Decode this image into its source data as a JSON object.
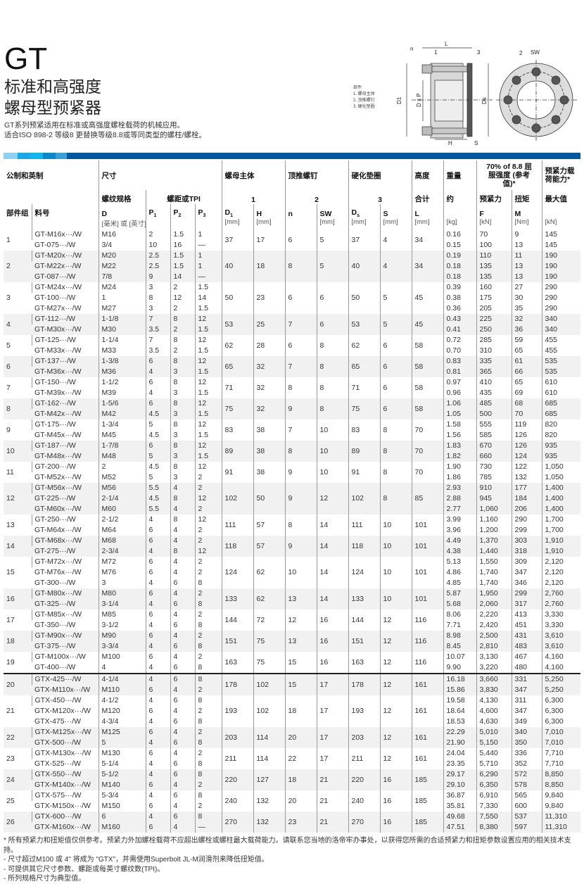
{
  "header": {
    "title": "GT",
    "subtitle_1": "标准和高强度",
    "subtitle_2": "螺母型预紧器",
    "desc_1": "GT系列预紧适用在标准或高强度螺栓载荷的机械应用。",
    "desc_2": "适合ISO 898-2 等级8 更替换等级8.8或等同类型的螺柱/螺栓。"
  },
  "diagram": {
    "legend_title": "部件:",
    "legend": [
      "1. 螺母主体",
      "2. 顶推螺钉",
      "3. 硬化垫圈"
    ],
    "labels": {
      "n": "n",
      "one": "1",
      "three": "3",
      "L": "L",
      "two": "2",
      "SW": "SW",
      "D1": "D1",
      "DxP": "D x P",
      "Ds": "Ds",
      "H": "H",
      "S": "S"
    }
  },
  "colors": {
    "bar": [
      "#8fd0f0",
      "#1aa7e8",
      "#11b5ee",
      "#0b88c9",
      "#3a9fd6",
      "#0057a0"
    ],
    "accent": "#0057a0"
  },
  "table_header": {
    "metric_imperial": "公制和英制",
    "size": "尺寸",
    "nut_body": "螺母主体",
    "jackbolt": "顶推螺钉",
    "washer": "硬化垫圈",
    "height": "高度",
    "weight": "重量",
    "strength": "70% of 8.8 屈服强度 (参考值)*",
    "capacity": "预紧力载荷能力*",
    "thread": "螺纹规格",
    "pitch": "螺距或TPI",
    "n1": "1",
    "n2": "2",
    "n3": "3",
    "total": "合计",
    "approx": "约",
    "preload": "预紧力",
    "torque": "扭矩",
    "max": "最大值",
    "group": "部件组",
    "part": "料号",
    "D": "D",
    "P1": "P",
    "P2": "P",
    "P3": "P",
    "D1": "D",
    "H": "H",
    "n": "n",
    "SW": "SW",
    "Ds": "D",
    "S": "S",
    "L": "L",
    "F": "F",
    "M": "M",
    "u_D": "[毫米] 或 [英寸]",
    "u_mm": "[mm]",
    "u_kg": "[kg]",
    "u_kN": "[kN]",
    "u_Nm": "[Nm]"
  },
  "groups": [
    {
      "g": "1",
      "dims": [
        "37",
        "17",
        "6",
        "5",
        "37",
        "4",
        "34"
      ],
      "rows": [
        [
          "GT-M16x···/W",
          "M16",
          "2",
          "1.5",
          "1",
          "0.16",
          "70",
          "9",
          "145"
        ],
        [
          "GT-075···/W",
          "3/4",
          "10",
          "16",
          "—",
          "0.15",
          "100",
          "13",
          "145"
        ]
      ]
    },
    {
      "g": "2",
      "dims": [
        "40",
        "18",
        "8",
        "5",
        "40",
        "4",
        "34"
      ],
      "rows": [
        [
          "GT-M20x···/W",
          "M20",
          "2.5",
          "1.5",
          "1",
          "0.19",
          "110",
          "11",
          "190"
        ],
        [
          "GT-M22x···/W",
          "M22",
          "2.5",
          "1.5",
          "1",
          "0.18",
          "135",
          "13",
          "190"
        ],
        [
          "GT-087···/W",
          "7/8",
          "9",
          "14",
          "—",
          "0.18",
          "135",
          "13",
          "190"
        ]
      ]
    },
    {
      "g": "3",
      "dims": [
        "50",
        "23",
        "6",
        "6",
        "50",
        "5",
        "45"
      ],
      "rows": [
        [
          "GT-M24x···/W",
          "M24",
          "3",
          "2",
          "1.5",
          "0.39",
          "160",
          "27",
          "290"
        ],
        [
          "GT-100···/W",
          "1",
          "8",
          "12",
          "14",
          "0.38",
          "175",
          "30",
          "290"
        ],
        [
          "GT-M27x···/W",
          "M27",
          "3",
          "2",
          "1.5",
          "0.36",
          "205",
          "35",
          "290"
        ]
      ]
    },
    {
      "g": "4",
      "dims": [
        "53",
        "25",
        "7",
        "6",
        "53",
        "5",
        "45"
      ],
      "rows": [
        [
          "GT-112···/W",
          "1-1/8",
          "7",
          "8",
          "12",
          "0.43",
          "225",
          "32",
          "340"
        ],
        [
          "GT-M30x···/W",
          "M30",
          "3.5",
          "2",
          "1.5",
          "0.41",
          "250",
          "36",
          "340"
        ]
      ]
    },
    {
      "g": "5",
      "dims": [
        "62",
        "28",
        "6",
        "8",
        "62",
        "6",
        "58"
      ],
      "rows": [
        [
          "GT-125···/W",
          "1-1/4",
          "7",
          "8",
          "12",
          "0.72",
          "285",
          "59",
          "455"
        ],
        [
          "GT-M33x···/W",
          "M33",
          "3.5",
          "2",
          "1.5",
          "0.70",
          "310",
          "65",
          "455"
        ]
      ]
    },
    {
      "g": "6",
      "dims": [
        "65",
        "32",
        "7",
        "8",
        "65",
        "6",
        "58"
      ],
      "rows": [
        [
          "GT-137···/W",
          "1-3/8",
          "6",
          "8",
          "12",
          "0.83",
          "335",
          "61",
          "535"
        ],
        [
          "GT-M36x···/W",
          "M36",
          "4",
          "3",
          "1.5",
          "0.81",
          "365",
          "66",
          "535"
        ]
      ]
    },
    {
      "g": "7",
      "dims": [
        "71",
        "32",
        "8",
        "8",
        "71",
        "6",
        "58"
      ],
      "rows": [
        [
          "GT-150···/W",
          "1-1/2",
          "6",
          "8",
          "12",
          "0.97",
          "410",
          "65",
          "610"
        ],
        [
          "GT-M39x···/W",
          "M39",
          "4",
          "3",
          "1.5",
          "0.96",
          "435",
          "69",
          "610"
        ]
      ]
    },
    {
      "g": "8",
      "dims": [
        "75",
        "32",
        "9",
        "8",
        "75",
        "6",
        "58"
      ],
      "rows": [
        [
          "GT-162···/W",
          "1-5/6",
          "6",
          "8",
          "12",
          "1.06",
          "485",
          "68",
          "685"
        ],
        [
          "GT-M42x···/W",
          "M42",
          "4.5",
          "3",
          "1.5",
          "1.05",
          "500",
          "70",
          "685"
        ]
      ]
    },
    {
      "g": "9",
      "dims": [
        "83",
        "38",
        "7",
        "10",
        "83",
        "8",
        "70"
      ],
      "rows": [
        [
          "GT-175···/W",
          "1-3/4",
          "5",
          "8",
          "12",
          "1.58",
          "555",
          "119",
          "820"
        ],
        [
          "GT-M45x···/W",
          "M45",
          "4.5",
          "3",
          "1.5",
          "1.56",
          "585",
          "126",
          "820"
        ]
      ]
    },
    {
      "g": "10",
      "dims": [
        "89",
        "38",
        "8",
        "10",
        "89",
        "8",
        "70"
      ],
      "rows": [
        [
          "GT-187···/W",
          "1-7/8",
          "6",
          "8",
          "12",
          "1.83",
          "670",
          "126",
          "935"
        ],
        [
          "GT-M48x···/W",
          "M48",
          "5",
          "3",
          "1.5",
          "1.82",
          "660",
          "124",
          "935"
        ]
      ]
    },
    {
      "g": "11",
      "dims": [
        "91",
        "38",
        "9",
        "10",
        "91",
        "8",
        "70"
      ],
      "rows": [
        [
          "GT-200···/W",
          "2",
          "4.5",
          "8",
          "12",
          "1.90",
          "730",
          "122",
          "1,050"
        ],
        [
          "GT-M52x···/W",
          "M52",
          "5",
          "3",
          "2",
          "1.86",
          "785",
          "132",
          "1,050"
        ]
      ]
    },
    {
      "g": "12",
      "dims": [
        "102",
        "50",
        "9",
        "12",
        "102",
        "8",
        "85"
      ],
      "rows": [
        [
          "GT-M56x···/W",
          "M56",
          "5.5",
          "4",
          "2",
          "2.93",
          "910",
          "177",
          "1,400"
        ],
        [
          "GT-225···/W",
          "2-1/4",
          "4.5",
          "8",
          "12",
          "2.88",
          "945",
          "184",
          "1,400"
        ],
        [
          "GT-M60x···/W",
          "M60",
          "5.5",
          "4",
          "2",
          "2.77",
          "1,060",
          "206",
          "1,400"
        ]
      ]
    },
    {
      "g": "13",
      "dims": [
        "111",
        "57",
        "8",
        "14",
        "111",
        "10",
        "101"
      ],
      "rows": [
        [
          "GT-250···/W",
          "2-1/2",
          "4",
          "8",
          "12",
          "3.99",
          "1,160",
          "290",
          "1,700"
        ],
        [
          "GT-M64x···/W",
          "M64",
          "6",
          "4",
          "2",
          "3.96",
          "1,200",
          "299",
          "1,700"
        ]
      ]
    },
    {
      "g": "14",
      "dims": [
        "118",
        "57",
        "9",
        "14",
        "118",
        "10",
        "101"
      ],
      "rows": [
        [
          "GT-M68x···/W",
          "M68",
          "6",
          "4",
          "2",
          "4.49",
          "1,370",
          "303",
          "1,910"
        ],
        [
          "GT-275···/W",
          "2-3/4",
          "4",
          "8",
          "12",
          "4.38",
          "1,440",
          "318",
          "1,910"
        ]
      ]
    },
    {
      "g": "15",
      "dims": [
        "124",
        "62",
        "10",
        "14",
        "124",
        "10",
        "101"
      ],
      "rows": [
        [
          "GT-M72x···/W",
          "M72",
          "6",
          "4",
          "2",
          "5.13",
          "1,550",
          "309",
          "2,120"
        ],
        [
          "GT-M76x···/W",
          "M76",
          "6",
          "4",
          "2",
          "4.86",
          "1,740",
          "347",
          "2,120"
        ],
        [
          "GT-300···/W",
          "3",
          "4",
          "6",
          "8",
          "4.85",
          "1,740",
          "346",
          "2,120"
        ]
      ]
    },
    {
      "g": "16",
      "dims": [
        "133",
        "62",
        "13",
        "14",
        "133",
        "10",
        "101"
      ],
      "rows": [
        [
          "GT-M80x···/W",
          "M80",
          "6",
          "4",
          "2",
          "5.87",
          "1,950",
          "299",
          "2,760"
        ],
        [
          "GT-325···/W",
          "3-1/4",
          "4",
          "6",
          "8",
          "5.68",
          "2,060",
          "317",
          "2,760"
        ]
      ]
    },
    {
      "g": "17",
      "dims": [
        "144",
        "72",
        "12",
        "16",
        "144",
        "12",
        "116"
      ],
      "rows": [
        [
          "GT-M85x···/W",
          "M85",
          "6",
          "4",
          "2",
          "8.06",
          "2,220",
          "413",
          "3,330"
        ],
        [
          "GT-350···/W",
          "3-1/2",
          "4",
          "6",
          "8",
          "7.71",
          "2,420",
          "451",
          "3,330"
        ]
      ]
    },
    {
      "g": "18",
      "dims": [
        "151",
        "75",
        "13",
        "16",
        "151",
        "12",
        "116"
      ],
      "rows": [
        [
          "GT-M90x···/W",
          "M90",
          "6",
          "4",
          "2",
          "8.98",
          "2,500",
          "431",
          "3,610"
        ],
        [
          "GT-375···/W",
          "3-3/4",
          "4",
          "6",
          "8",
          "8.45",
          "2,810",
          "483",
          "3,610"
        ]
      ]
    },
    {
      "g": "19",
      "dims": [
        "163",
        "75",
        "15",
        "16",
        "163",
        "12",
        "116"
      ],
      "rows": [
        [
          "GT-M100x···/W",
          "M100",
          "6",
          "4",
          "2",
          "10.07",
          "3,130",
          "467",
          "4,160"
        ],
        [
          "GT-400···/W",
          "4",
          "4",
          "6",
          "8",
          "9.90",
          "3,220",
          "480",
          "4,160"
        ]
      ]
    },
    {
      "g": "20",
      "dims": [
        "178",
        "102",
        "15",
        "17",
        "178",
        "12",
        "161"
      ],
      "rows": [
        [
          "GTX-425···/W",
          "4-1/4",
          "4",
          "6",
          "8",
          "16.18",
          "3,660",
          "331",
          "5,250"
        ],
        [
          "GTX-M110x···/W",
          "M110",
          "6",
          "4",
          "2",
          "15.86",
          "3,830",
          "347",
          "5,250"
        ]
      ]
    },
    {
      "g": "21",
      "dims": [
        "193",
        "102",
        "18",
        "17",
        "193",
        "12",
        "161"
      ],
      "rows": [
        [
          "GTX-450···/W",
          "4-1/2",
          "4",
          "6",
          "8",
          "19.58",
          "4,130",
          "311",
          "6,300"
        ],
        [
          "GTX-M120x···/W",
          "M120",
          "6",
          "4",
          "2",
          "18.64",
          "4,600",
          "347",
          "6,300"
        ],
        [
          "GTX-475···/W",
          "4-3/4",
          "4",
          "6",
          "8",
          "18.53",
          "4,630",
          "349",
          "6,300"
        ]
      ]
    },
    {
      "g": "22",
      "dims": [
        "203",
        "114",
        "20",
        "17",
        "203",
        "12",
        "161"
      ],
      "rows": [
        [
          "GTX-M125x···/W",
          "M125",
          "6",
          "4",
          "2",
          "22.29",
          "5,010",
          "340",
          "7,010"
        ],
        [
          "GTX-500···/W",
          "5",
          "4",
          "6",
          "8",
          "21.90",
          "5,150",
          "350",
          "7,010"
        ]
      ]
    },
    {
      "g": "23",
      "dims": [
        "211",
        "114",
        "22",
        "17",
        "211",
        "12",
        "161"
      ],
      "rows": [
        [
          "GTX-M130x···/W",
          "M130",
          "6",
          "4",
          "2",
          "24.04",
          "5,440",
          "336",
          "7,710"
        ],
        [
          "GTX-525···/W",
          "5-1/4",
          "4",
          "6",
          "8",
          "23.35",
          "5,710",
          "352",
          "7,710"
        ]
      ]
    },
    {
      "g": "24",
      "dims": [
        "220",
        "127",
        "18",
        "21",
        "220",
        "16",
        "185"
      ],
      "rows": [
        [
          "GTX-550···/W",
          "5-1/2",
          "4",
          "6",
          "8",
          "29.17",
          "6,290",
          "572",
          "8,850"
        ],
        [
          "GTX-M140x···/W",
          "M140",
          "6",
          "4",
          "2",
          "29.10",
          "6,350",
          "578",
          "8,850"
        ]
      ]
    },
    {
      "g": "25",
      "dims": [
        "240",
        "132",
        "20",
        "21",
        "240",
        "16",
        "185"
      ],
      "rows": [
        [
          "GTX-575···/W",
          "5-3/4",
          "4",
          "6",
          "8",
          "36.87",
          "6,910",
          "565",
          "9,840"
        ],
        [
          "GTX-M150x···/W",
          "M150",
          "6",
          "4",
          "2",
          "35.81",
          "7,330",
          "600",
          "9,840"
        ]
      ]
    },
    {
      "g": "26",
      "dims": [
        "270",
        "132",
        "23",
        "21",
        "270",
        "16",
        "185"
      ],
      "rows": [
        [
          "GTX-600···/W",
          "6",
          "4",
          "6",
          "8",
          "49.68",
          "7,550",
          "537",
          "11,310"
        ],
        [
          "GTX-M160x···/W",
          "M160",
          "6",
          "4",
          "—",
          "47.51",
          "8,380",
          "597",
          "11,310"
        ]
      ]
    }
  ],
  "notes": [
    "* 所有预紧力和扭矩值仅供参考。预紧力外加螺栓载荷不应超出螺栓或螺柱最大载荷能力。请联系您当地的洛帝牢办事处，以获得您所需的合适预紧力和扭矩参数设置应用的相关技术支持。",
    "- 尺寸超过M100 或 4\" 将成为 \"GTX\"，并需使用Superbolt JL-M润滑剂来降低扭矩值。",
    "- 可提供其它尺寸参数、螺距或每英寸螺纹数(TPI)。",
    "- 所列规格尺寸为典型值。"
  ]
}
